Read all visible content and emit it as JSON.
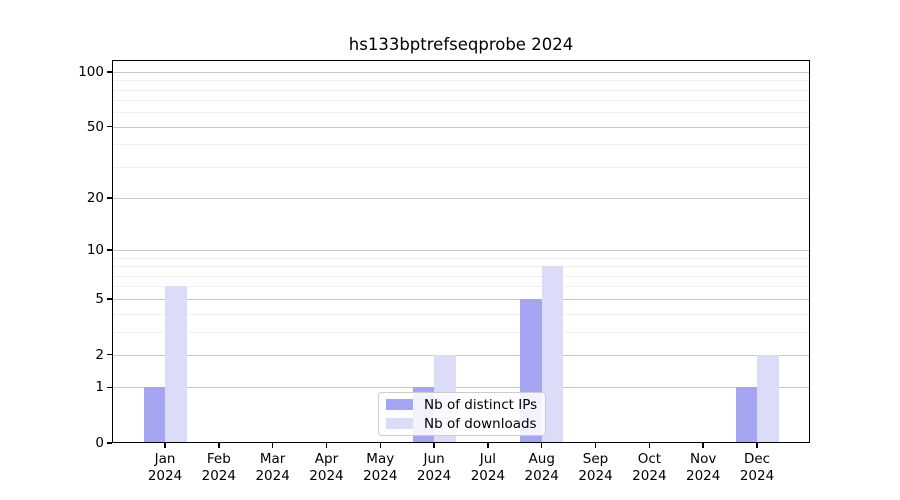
{
  "chart_data": {
    "type": "bar",
    "title": "hs133bptrefseqprobe 2024",
    "categories": [
      "Jan\n2024",
      "Feb\n2024",
      "Mar\n2024",
      "Apr\n2024",
      "May\n2024",
      "Jun\n2024",
      "Jul\n2024",
      "Aug\n2024",
      "Sep\n2024",
      "Oct\n2024",
      "Nov\n2024",
      "Dec\n2024"
    ],
    "series": [
      {
        "name": "Nb of distinct IPs",
        "color": "#a5a5f2",
        "values": [
          1,
          0,
          0,
          0,
          0,
          1,
          0,
          5,
          0,
          0,
          0,
          1
        ]
      },
      {
        "name": "Nb of downloads",
        "color": "#dcdcf8",
        "values": [
          6,
          0,
          0,
          0,
          0,
          2,
          0,
          8,
          0,
          0,
          0,
          2
        ]
      }
    ],
    "y_axis": {
      "scale": "log1p",
      "ylim": [
        0,
        116
      ],
      "major_ticks": [
        0,
        1,
        2,
        5,
        10,
        20,
        50,
        100
      ],
      "minor_ticks": [
        3,
        4,
        6,
        7,
        8,
        9,
        30,
        40,
        60,
        70,
        80,
        90
      ]
    },
    "xlabel": "",
    "ylabel": "",
    "grid": {
      "enabled": true,
      "major_color": "#c9c9c9",
      "minor_color": "#efefef"
    },
    "legend": {
      "position": "lower-center"
    }
  }
}
